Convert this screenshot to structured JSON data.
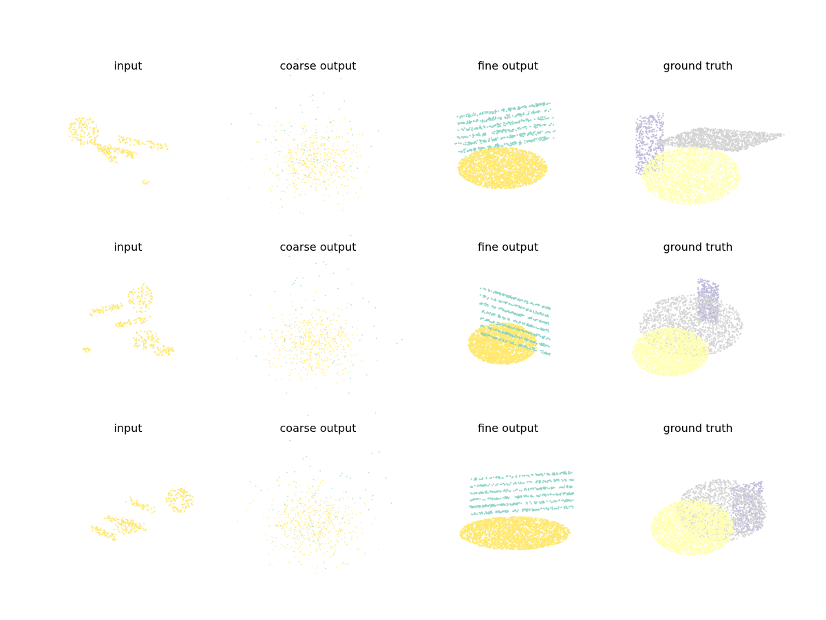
{
  "colors": {
    "yellow": "#fee86e",
    "teal": "#8dd3c7",
    "lavender": "#bebada",
    "grey": "#d3d3d3",
    "pale_yellow": "#ffffb3"
  },
  "chart_data": [
    {
      "type": "scatter",
      "title": "input",
      "shape": "input-a",
      "series": [
        {
          "color_key": "yellow",
          "count": 340
        }
      ]
    },
    {
      "type": "scatter",
      "title": "coarse output",
      "shape": "coarse",
      "series": [
        {
          "color_key": "yellow",
          "count": 520
        },
        {
          "color_key": "teal",
          "count": 60
        }
      ]
    },
    {
      "type": "scatter",
      "title": "fine output",
      "shape": "fine-a",
      "series": [
        {
          "color_key": "yellow",
          "count": 2400
        },
        {
          "color_key": "teal",
          "count": 700
        }
      ]
    },
    {
      "type": "scatter",
      "title": "ground truth",
      "shape": "gt-a",
      "series": [
        {
          "color_key": "lavender",
          "count": 450
        },
        {
          "color_key": "grey",
          "count": 1300
        },
        {
          "color_key": "pale_yellow",
          "count": 2400
        }
      ]
    },
    {
      "type": "scatter",
      "title": "input",
      "shape": "input-b",
      "series": [
        {
          "color_key": "yellow",
          "count": 340
        }
      ]
    },
    {
      "type": "scatter",
      "title": "coarse output",
      "shape": "coarse",
      "series": [
        {
          "color_key": "yellow",
          "count": 520
        },
        {
          "color_key": "teal",
          "count": 60
        }
      ]
    },
    {
      "type": "scatter",
      "title": "fine output",
      "shape": "fine-b",
      "series": [
        {
          "color_key": "yellow",
          "count": 2400
        },
        {
          "color_key": "teal",
          "count": 600
        }
      ]
    },
    {
      "type": "scatter",
      "title": "ground truth",
      "shape": "gt-b",
      "series": [
        {
          "color_key": "lavender",
          "count": 450
        },
        {
          "color_key": "grey",
          "count": 1500
        },
        {
          "color_key": "pale_yellow",
          "count": 2400
        }
      ]
    },
    {
      "type": "scatter",
      "title": "input",
      "shape": "input-c",
      "series": [
        {
          "color_key": "yellow",
          "count": 340
        }
      ]
    },
    {
      "type": "scatter",
      "title": "coarse output",
      "shape": "coarse",
      "series": [
        {
          "color_key": "yellow",
          "count": 520
        },
        {
          "color_key": "teal",
          "count": 60
        }
      ]
    },
    {
      "type": "scatter",
      "title": "fine output",
      "shape": "fine-c",
      "series": [
        {
          "color_key": "yellow",
          "count": 2400
        },
        {
          "color_key": "teal",
          "count": 650
        }
      ]
    },
    {
      "type": "scatter",
      "title": "ground truth",
      "shape": "gt-c",
      "series": [
        {
          "color_key": "lavender",
          "count": 450
        },
        {
          "color_key": "grey",
          "count": 1300
        },
        {
          "color_key": "pale_yellow",
          "count": 2600
        }
      ]
    }
  ]
}
